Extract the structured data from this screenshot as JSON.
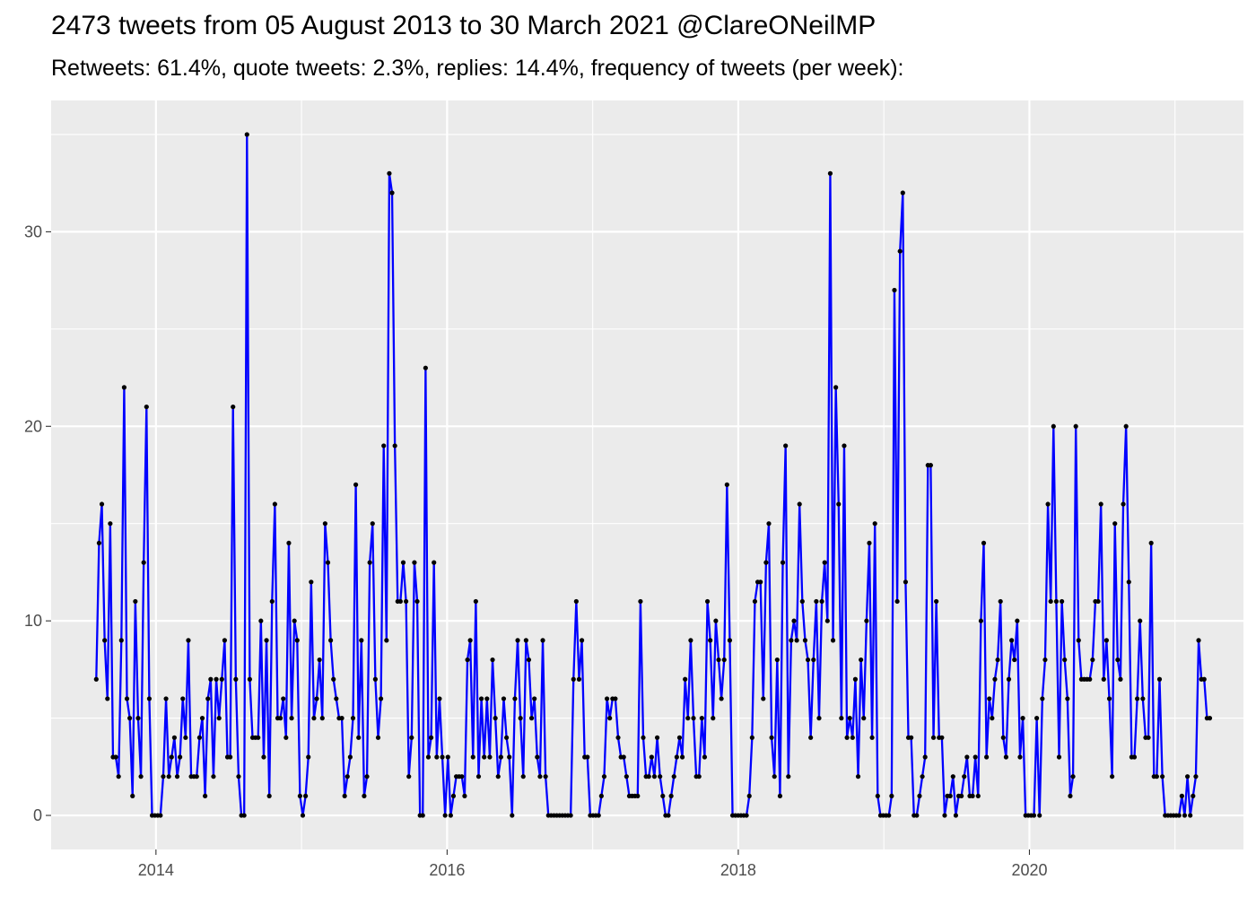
{
  "chart_data": {
    "type": "line",
    "title": "2473 tweets from 05 August 2013 to 30 March 2021 @ClareONeilMP",
    "subtitle": "Retweets: 61.4%, quote tweets: 2.3%, replies: 14.4%, frequency of tweets (per week):",
    "xlabel": "",
    "ylabel": "",
    "xlim": [
      2013.28,
      2021.47
    ],
    "ylim": [
      -1.75,
      36.75
    ],
    "x_ticks": [
      2014,
      2016,
      2018,
      2020
    ],
    "x_tick_labels": [
      "2014",
      "2016",
      "2018",
      "2020"
    ],
    "y_ticks": [
      0,
      10,
      20,
      30
    ],
    "y_tick_labels": [
      "0",
      "10",
      "20",
      "30"
    ],
    "grid": true,
    "legend": "none",
    "series": [
      {
        "color": "#0000ff",
        "point_color": "#000000",
        "start_year": 2013.59,
        "step_years": 0.01917,
        "values": [
          7,
          14,
          16,
          9,
          6,
          15,
          3,
          3,
          2,
          9,
          22,
          6,
          5,
          1,
          11,
          5,
          2,
          13,
          21,
          6,
          0,
          0,
          0,
          0,
          2,
          6,
          2,
          3,
          4,
          2,
          3,
          6,
          4,
          9,
          2,
          2,
          2,
          4,
          5,
          1,
          6,
          7,
          2,
          7,
          5,
          7,
          9,
          3,
          3,
          21,
          7,
          2,
          0,
          0,
          35,
          7,
          4,
          4,
          4,
          10,
          3,
          9,
          1,
          11,
          16,
          5,
          5,
          6,
          4,
          14,
          5,
          10,
          9,
          1,
          0,
          1,
          3,
          12,
          5,
          6,
          8,
          5,
          15,
          13,
          9,
          7,
          6,
          5,
          5,
          1,
          2,
          3,
          5,
          17,
          4,
          9,
          1,
          2,
          13,
          15,
          7,
          4,
          6,
          19,
          9,
          33,
          32,
          19,
          11,
          11,
          13,
          11,
          2,
          4,
          13,
          11,
          0,
          0,
          23,
          3,
          4,
          13,
          3,
          6,
          3,
          0,
          3,
          0,
          1,
          2,
          2,
          2,
          1,
          8,
          9,
          3,
          11,
          2,
          6,
          3,
          6,
          3,
          8,
          5,
          2,
          3,
          6,
          4,
          3,
          0,
          6,
          9,
          5,
          2,
          9,
          8,
          5,
          6,
          3,
          2,
          9,
          2,
          0,
          0,
          0,
          0,
          0,
          0,
          0,
          0,
          0,
          7,
          11,
          7,
          9,
          3,
          3,
          0,
          0,
          0,
          0,
          1,
          2,
          6,
          5,
          6,
          6,
          4,
          3,
          3,
          2,
          1,
          1,
          1,
          1,
          11,
          4,
          2,
          2,
          3,
          2,
          4,
          2,
          1,
          0,
          0,
          1,
          2,
          3,
          4,
          3,
          7,
          5,
          9,
          5,
          2,
          2,
          5,
          3,
          11,
          9,
          5,
          10,
          8,
          6,
          8,
          17,
          9,
          0,
          0,
          0,
          0,
          0,
          0,
          1,
          4,
          11,
          12,
          12,
          6,
          13,
          15,
          4,
          2,
          8,
          1,
          13,
          19,
          2,
          9,
          10,
          9,
          16,
          11,
          9,
          8,
          4,
          8,
          11,
          5,
          11,
          13,
          10,
          33,
          9,
          22,
          16,
          5,
          19,
          4,
          5,
          4,
          7,
          2,
          8,
          5,
          10,
          14,
          4,
          15,
          1,
          0,
          0,
          0,
          0,
          1,
          27,
          11,
          29,
          32,
          12,
          4,
          4,
          0,
          0,
          1,
          2,
          3,
          18,
          18,
          4,
          11,
          4,
          4,
          0,
          1,
          1,
          2,
          0,
          1,
          1,
          2,
          3,
          1,
          1,
          3,
          1,
          10,
          14,
          3,
          6,
          5,
          7,
          8,
          11,
          4,
          3,
          7,
          9,
          8,
          10,
          3,
          5,
          0,
          0,
          0,
          0,
          5,
          0,
          6,
          8,
          16,
          11,
          20,
          11,
          3,
          11,
          8,
          6,
          1,
          2,
          20,
          9,
          7,
          7,
          7,
          7,
          8,
          11,
          11,
          16,
          7,
          9,
          6,
          2,
          15,
          8,
          7,
          16,
          20,
          12,
          3,
          3,
          6,
          10,
          6,
          4,
          4,
          14,
          2,
          2,
          7,
          2,
          0,
          0,
          0,
          0,
          0,
          0,
          1,
          0,
          2,
          0,
          1,
          2,
          9,
          7,
          7,
          5,
          5
        ]
      }
    ]
  }
}
